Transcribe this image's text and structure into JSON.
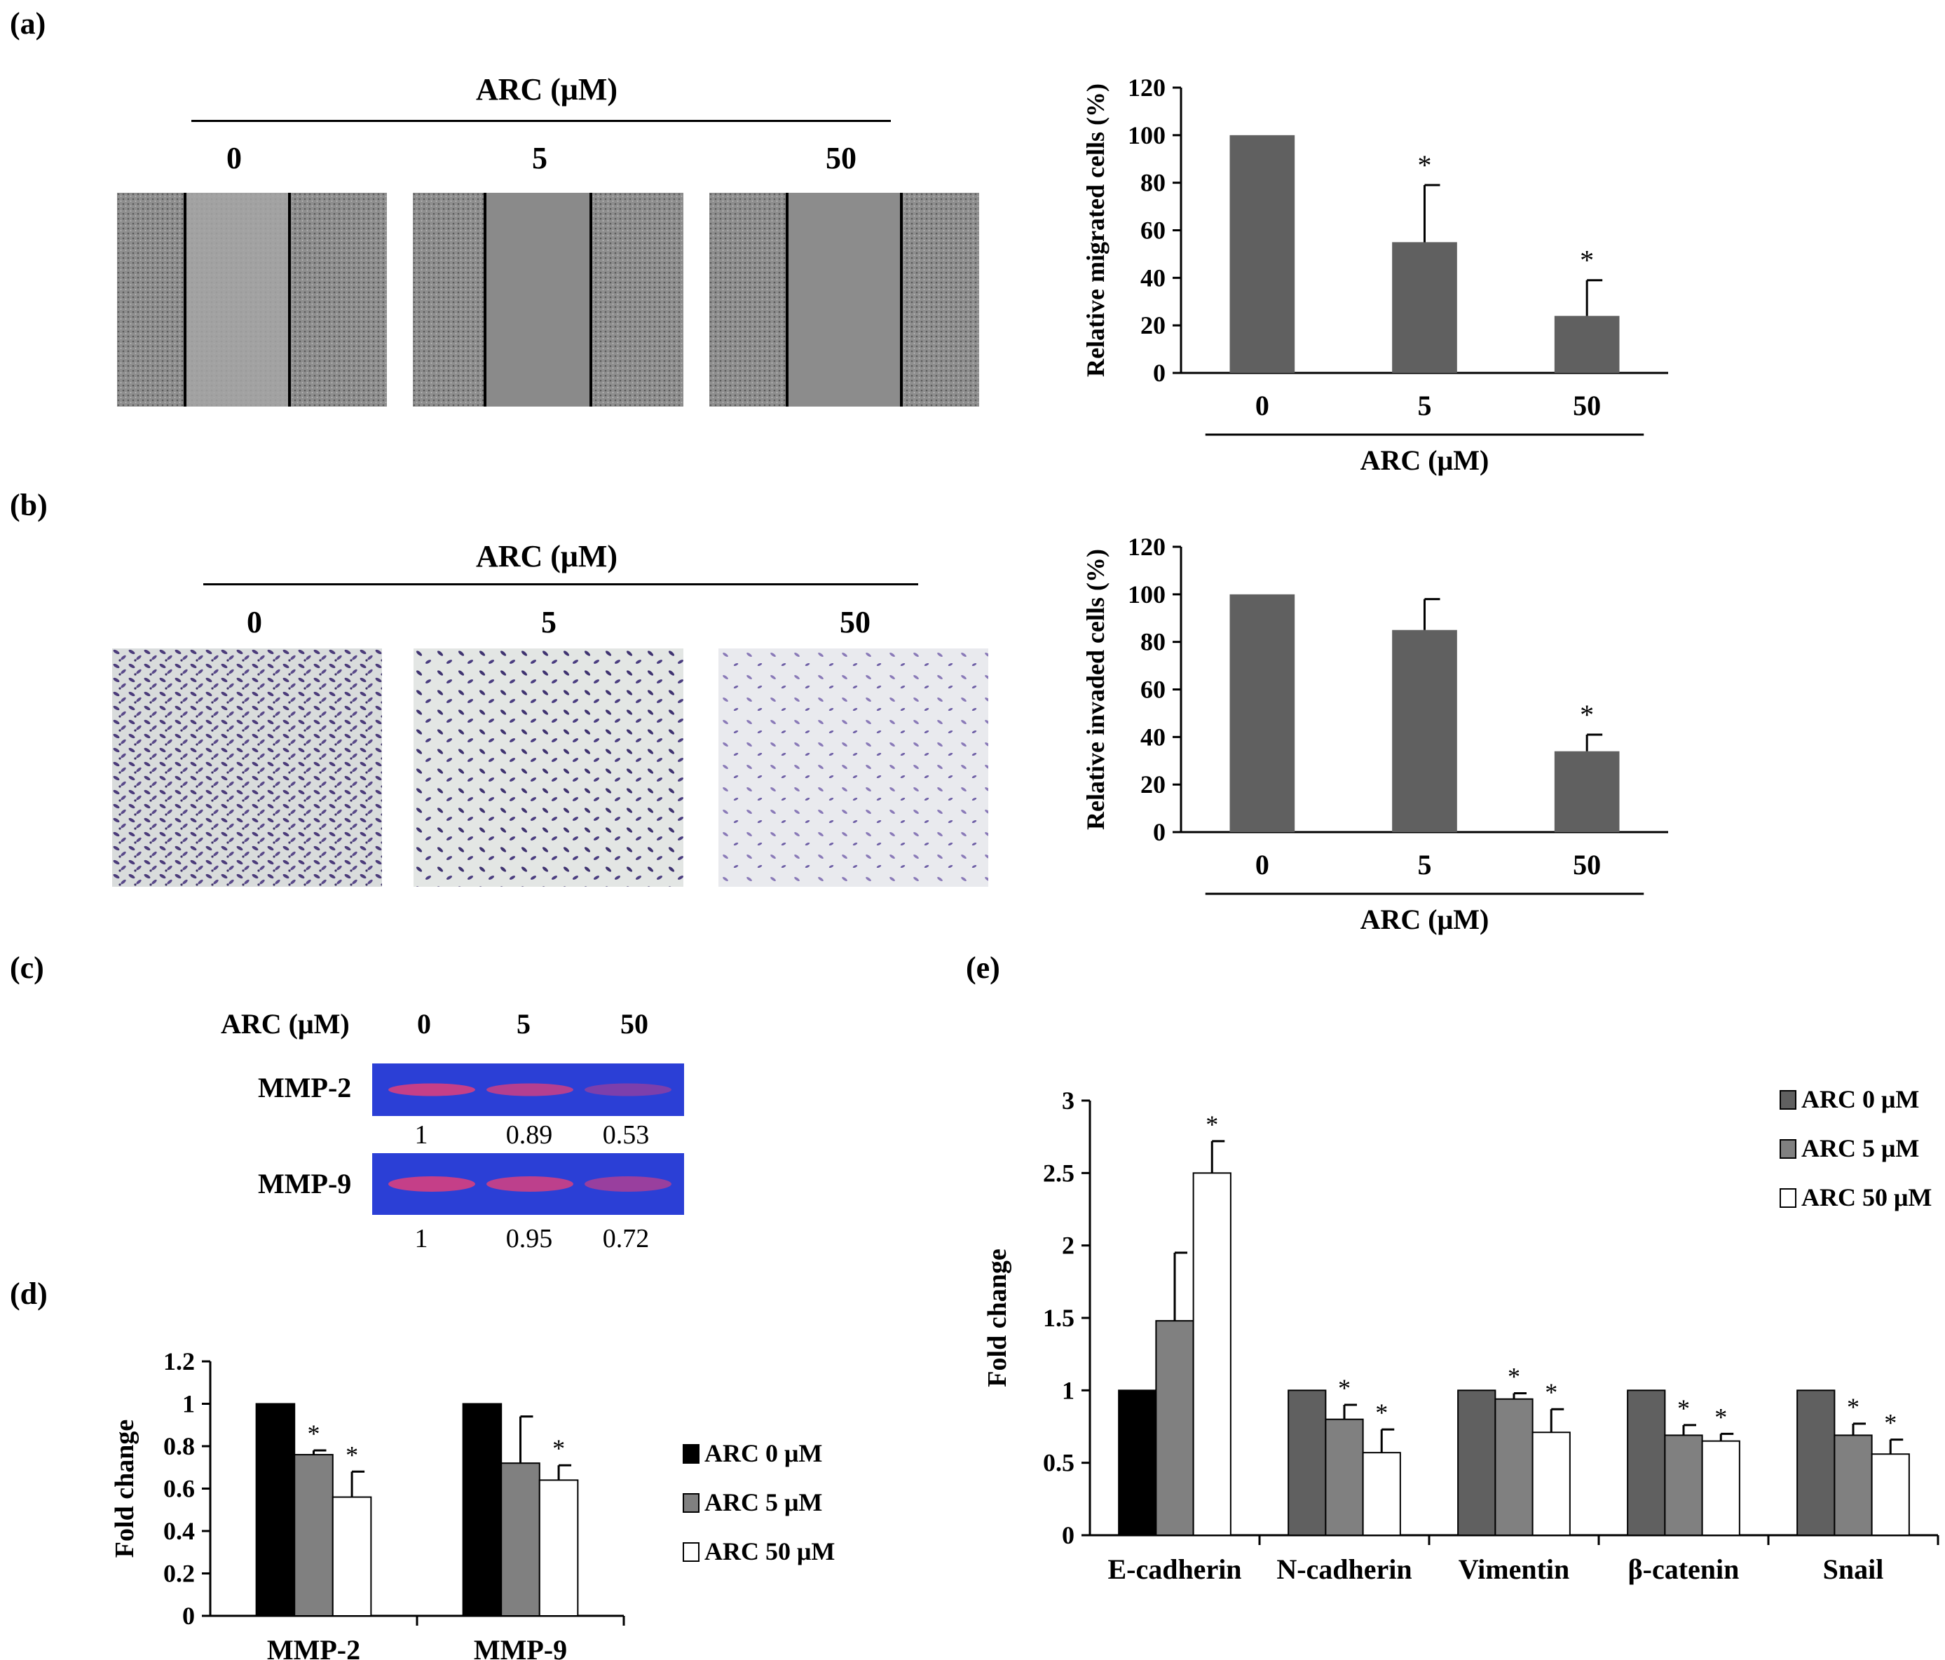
{
  "panels": {
    "a": "(a)",
    "b": "(b)",
    "c": "(c)",
    "d": "(d)",
    "e": "(e)"
  },
  "concentration_header": "ARC (μM)",
  "concentrations": [
    "0",
    "5",
    "50"
  ],
  "gel": {
    "header": "ARC (μM)",
    "lanes": [
      "0",
      "5",
      "50"
    ],
    "rows": [
      {
        "label": "MMP-2",
        "values": [
          "1",
          "0.89",
          "0.53"
        ]
      },
      {
        "label": "MMP-9",
        "values": [
          "1",
          "0.95",
          "0.72"
        ]
      }
    ],
    "colors": {
      "background": "#2b3fd6",
      "band": "#e0407a"
    }
  },
  "colors": {
    "bar_gray": "#606060",
    "mid_gray": "#808080",
    "black": "#000000",
    "white": "#ffffff"
  },
  "chart_data": [
    {
      "id": "a",
      "type": "bar",
      "categories": [
        "0",
        "5",
        "50"
      ],
      "values": [
        100,
        55,
        24
      ],
      "errors": [
        0,
        24,
        15
      ],
      "significant": [
        false,
        true,
        true
      ],
      "xlabel": "ARC (μM)",
      "ylabel": "Relative migrated cells (%)",
      "ylim": [
        0,
        120
      ],
      "yticks": [
        0,
        20,
        40,
        60,
        80,
        100,
        120
      ]
    },
    {
      "id": "b",
      "type": "bar",
      "categories": [
        "0",
        "5",
        "50"
      ],
      "values": [
        100,
        85,
        34
      ],
      "errors": [
        0,
        13,
        7
      ],
      "significant": [
        false,
        false,
        true
      ],
      "xlabel": "ARC (μM)",
      "ylabel": "Relative invaded cells (%)",
      "ylim": [
        0,
        120
      ],
      "yticks": [
        0,
        20,
        40,
        60,
        80,
        100,
        120
      ]
    },
    {
      "id": "d",
      "type": "bar",
      "categories": [
        "MMP-2",
        "MMP-9"
      ],
      "series": [
        {
          "name": "ARC 0 μM",
          "values": [
            1,
            1
          ],
          "errors": [
            0,
            0
          ],
          "significant": [
            false,
            false
          ]
        },
        {
          "name": "ARC 5 μM",
          "values": [
            0.76,
            0.72
          ],
          "errors": [
            0.02,
            0.22
          ],
          "significant": [
            true,
            false
          ]
        },
        {
          "name": "ARC 50 μM",
          "values": [
            0.56,
            0.64
          ],
          "errors": [
            0.12,
            0.07
          ],
          "significant": [
            true,
            true
          ]
        }
      ],
      "ylabel": "Fold change",
      "ylim": [
        0,
        1.2
      ],
      "yticks": [
        "0",
        "0.2",
        "0.4",
        "0.6",
        "0.8",
        "1",
        "1.2"
      ]
    },
    {
      "id": "e",
      "type": "bar",
      "categories": [
        "E-cadherin",
        "N-cadherin",
        "Vimentin",
        "β-catenin",
        "Snail"
      ],
      "series": [
        {
          "name": "ARC 0 μM",
          "values": [
            1,
            1,
            1,
            1,
            1
          ],
          "errors": [
            0,
            0,
            0,
            0,
            0
          ],
          "significant": [
            false,
            false,
            false,
            false,
            false
          ]
        },
        {
          "name": "ARC 5 μM",
          "values": [
            1.48,
            0.8,
            0.94,
            0.69,
            0.69
          ],
          "errors": [
            0.47,
            0.1,
            0.04,
            0.07,
            0.08
          ],
          "significant": [
            false,
            true,
            true,
            true,
            true
          ]
        },
        {
          "name": "ARC 50 μM",
          "values": [
            2.5,
            0.57,
            0.71,
            0.65,
            0.56
          ],
          "errors": [
            0.22,
            0.16,
            0.16,
            0.05,
            0.1
          ],
          "significant": [
            true,
            true,
            true,
            true,
            true
          ]
        }
      ],
      "ylabel": "Fold change",
      "ylim": [
        0,
        3
      ],
      "yticks": [
        "0",
        "0.5",
        "1",
        "1.5",
        "2",
        "2.5",
        "3"
      ]
    }
  ]
}
